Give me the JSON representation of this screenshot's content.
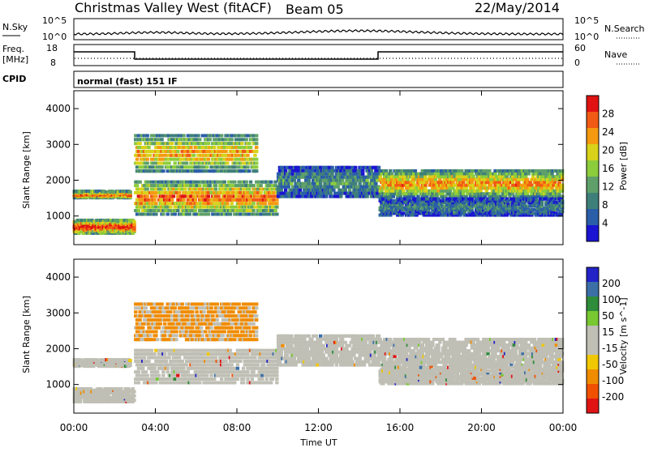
{
  "header": {
    "station": "Christmas Valley West (fitACF)",
    "beam": "Beam 05",
    "date": "22/May/2014"
  },
  "top_panels": {
    "nsky_label": "N.Sky",
    "nsky_ticks": [
      "10^5",
      "10^0"
    ],
    "nsearch_label": "N.Search",
    "nsearch_ticks": [
      "10^5",
      "10^0"
    ],
    "freq_label_1": "Freq.",
    "freq_label_2": "[MHz]",
    "freq_ticks": [
      "18",
      "8"
    ],
    "nave_label": "Nave",
    "nave_ticks": [
      "60",
      "0"
    ],
    "cpid_label": "CPID",
    "cpid_text": "normal (fast) 151 IF"
  },
  "colors": {
    "power_scale": [
      "#1a14d2",
      "#2a5ea8",
      "#3f7f7a",
      "#5fa06a",
      "#8ccd3c",
      "#d8d21a",
      "#f59a10",
      "#f05a14",
      "#e01212"
    ],
    "velocity_scale": [
      "#2323c8",
      "#3b6fa6",
      "#2e8c3a",
      "#78c832",
      "#bfbfb5",
      "#bfbfb5",
      "#f0c800",
      "#f08c00",
      "#f05000",
      "#e01414"
    ]
  },
  "chart_data": [
    {
      "type": "heatmap",
      "name": "power",
      "ylabel": "Slant Range [km]",
      "yticks": [
        "4000",
        "3000",
        "2000",
        "1000"
      ],
      "ylim": [
        200,
        4500
      ],
      "colorbar_label": "Power [dB]",
      "colorbar_ticks": [
        "28",
        "24",
        "20",
        "16",
        "12",
        "8",
        "4"
      ],
      "bands": [
        {
          "t": [
            0.0,
            2.8
          ],
          "range": [
            1500,
            1700
          ],
          "level": 0.9
        },
        {
          "t": [
            0.0,
            3.0
          ],
          "range": [
            500,
            900
          ],
          "level": 1.0
        },
        {
          "t": [
            3.0,
            10.0
          ],
          "range": [
            1000,
            2000
          ],
          "level": 0.85
        },
        {
          "t": [
            3.0,
            9.0
          ],
          "range": [
            2200,
            3300
          ],
          "level": 0.75
        },
        {
          "t": [
            10.0,
            15.0
          ],
          "range": [
            1500,
            2400
          ],
          "level": 0.35
        },
        {
          "t": [
            15.0,
            24.0
          ],
          "range": [
            1500,
            2300
          ],
          "level": 0.8
        },
        {
          "t": [
            15.0,
            24.0
          ],
          "range": [
            1000,
            1500
          ],
          "level": 0.3
        }
      ]
    },
    {
      "type": "heatmap",
      "name": "velocity",
      "xlabel": "Time UT",
      "xticks": [
        "00:00",
        "04:00",
        "08:00",
        "12:00",
        "16:00",
        "20:00",
        "00:00"
      ],
      "xlim": [
        0,
        24
      ],
      "ylabel": "Slant Range [km]",
      "yticks": [
        "4000",
        "3000",
        "2000",
        "1000"
      ],
      "ylim": [
        200,
        4500
      ],
      "colorbar_label": "Velocity [m s^-1]",
      "colorbar_ticks": [
        "200",
        "100",
        "50",
        "15",
        "-15",
        "-50",
        "-100",
        "-200"
      ]
    }
  ]
}
